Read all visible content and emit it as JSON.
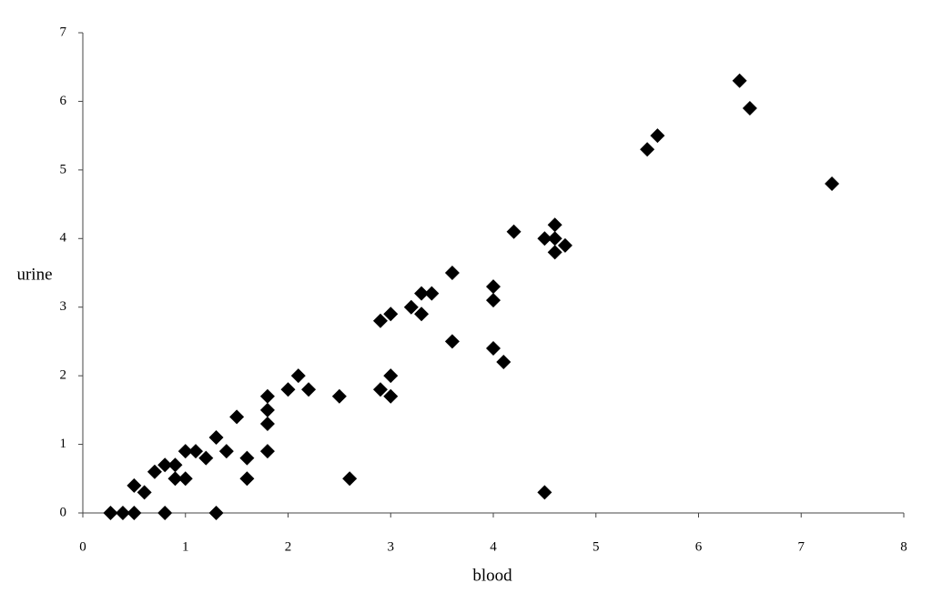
{
  "chart_data": {
    "type": "scatter",
    "x_label": "blood",
    "y_label": "urine",
    "x": [
      0.27,
      0.39,
      0.5,
      0.5,
      0.6,
      0.7,
      0.8,
      0.8,
      0.9,
      0.9,
      1.0,
      1.0,
      1.1,
      1.2,
      1.3,
      1.3,
      1.4,
      1.5,
      1.6,
      1.6,
      1.8,
      1.8,
      1.8,
      1.8,
      2.0,
      2.1,
      2.2,
      2.5,
      2.6,
      2.9,
      2.9,
      3.0,
      3.0,
      3.0,
      3.2,
      3.3,
      3.3,
      3.4,
      3.6,
      3.6,
      4.0,
      4.0,
      4.0,
      4.1,
      4.2,
      4.5,
      4.5,
      4.6,
      4.6,
      4.6,
      4.7,
      5.5,
      5.6,
      6.4,
      6.5,
      7.3
    ],
    "values": [
      0,
      0,
      0,
      0.4,
      0.3,
      0.6,
      0.7,
      0,
      0.7,
      0.5,
      0.9,
      0.5,
      0.9,
      0.8,
      1.1,
      0,
      0.9,
      1.4,
      0.8,
      0.5,
      1.7,
      1.5,
      1.3,
      0.9,
      1.8,
      2.0,
      1.8,
      1.7,
      0.5,
      2.8,
      1.8,
      2.9,
      2.0,
      1.7,
      3.0,
      3.2,
      2.9,
      3.2,
      3.5,
      2.5,
      3.3,
      3.1,
      2.4,
      2.2,
      4.1,
      4.0,
      0.3,
      4.2,
      4.0,
      3.8,
      3.9,
      5.3,
      5.5,
      6.3,
      5.9,
      4.8
    ],
    "color": "#000000",
    "xlim": [
      0,
      8
    ],
    "xticks": [
      0,
      1,
      2,
      3,
      4,
      5,
      6,
      7,
      8
    ],
    "ylim": [
      0,
      7
    ],
    "yticks": [
      0,
      1,
      2,
      3,
      4,
      5,
      6,
      7
    ],
    "grid": false
  }
}
